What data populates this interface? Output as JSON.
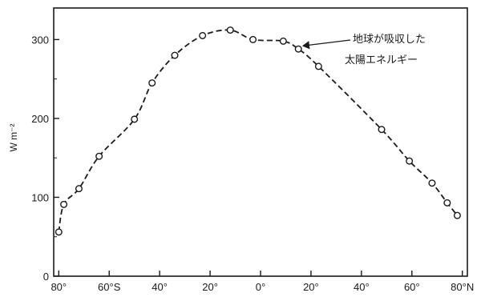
{
  "chart_data": {
    "type": "line",
    "title": "",
    "xlabel": "",
    "ylabel": "W m⁻²",
    "ylim": [
      0,
      340
    ],
    "xlim": [
      -82,
      82
    ],
    "grid": false,
    "legend": "none",
    "x_ticks": [
      {
        "value": -80,
        "label": "80°"
      },
      {
        "value": -60,
        "label": "60°S"
      },
      {
        "value": -40,
        "label": "40°"
      },
      {
        "value": -20,
        "label": "20°"
      },
      {
        "value": 0,
        "label": "0°"
      },
      {
        "value": 20,
        "label": "20°"
      },
      {
        "value": 40,
        "label": "40°"
      },
      {
        "value": 60,
        "label": "60°"
      },
      {
        "value": 80,
        "label": "80°N"
      }
    ],
    "y_ticks": [
      0,
      100,
      200,
      300
    ],
    "series": [
      {
        "name": "",
        "style": "dashed",
        "marker": "open-circle",
        "color": "#1a1a1a",
        "points": [
          {
            "x": -80,
            "y": 56
          },
          {
            "x": -78,
            "y": 91
          },
          {
            "x": -72,
            "y": 111
          },
          {
            "x": -64,
            "y": 152
          },
          {
            "x": -50,
            "y": 199
          },
          {
            "x": -43,
            "y": 245
          },
          {
            "x": -34,
            "y": 280
          },
          {
            "x": -23,
            "y": 305
          },
          {
            "x": -12,
            "y": 312
          },
          {
            "x": -3,
            "y": 300
          },
          {
            "x": 9,
            "y": 298
          },
          {
            "x": 15,
            "y": 288
          },
          {
            "x": 23,
            "y": 266
          },
          {
            "x": 48,
            "y": 186
          },
          {
            "x": 59,
            "y": 146
          },
          {
            "x": 68,
            "y": 118
          },
          {
            "x": 74,
            "y": 93
          },
          {
            "x": 78,
            "y": 77
          }
        ]
      }
    ],
    "annotations": [
      {
        "line1": "地球が吸収した",
        "line2": "太陽エネルギー",
        "points_to": {
          "x": 15,
          "y": 288
        }
      }
    ]
  }
}
